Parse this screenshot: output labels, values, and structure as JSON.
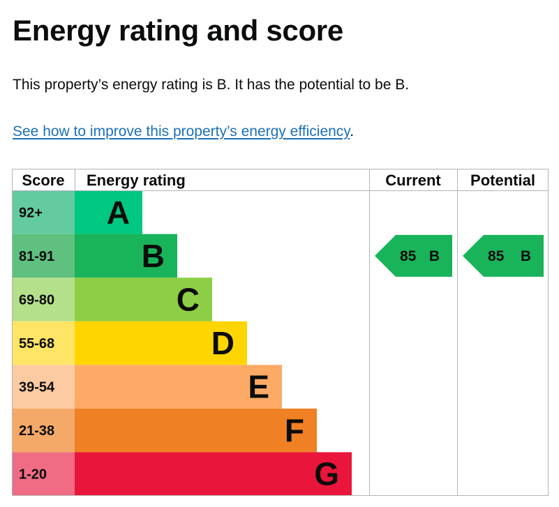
{
  "page": {
    "title": "Energy rating and score",
    "summary": "This property’s energy rating is B. It has the potential to be B.",
    "improve_link": "See how to improve this property’s energy efficiency",
    "improve_link_suffix": "."
  },
  "chart_data": {
    "type": "table",
    "columns": [
      "Score",
      "Energy rating",
      "Current",
      "Potential"
    ],
    "bands": [
      {
        "range": "92+",
        "letter": "A",
        "color": "#00c781",
        "score_bg": "#64cba0"
      },
      {
        "range": "81-91",
        "letter": "B",
        "color": "#19b459",
        "score_bg": "#5fc07f"
      },
      {
        "range": "69-80",
        "letter": "C",
        "color": "#8dce46",
        "score_bg": "#b4e08c"
      },
      {
        "range": "55-68",
        "letter": "D",
        "color": "#ffd500",
        "score_bg": "#ffe566"
      },
      {
        "range": "39-54",
        "letter": "E",
        "color": "#fcaa65",
        "score_bg": "#fdcba2"
      },
      {
        "range": "21-38",
        "letter": "F",
        "color": "#ef8023",
        "score_bg": "#f5a969"
      },
      {
        "range": "1-20",
        "letter": "G",
        "color": "#e9153b",
        "score_bg": "#f06c84"
      }
    ],
    "current": {
      "score": "85",
      "letter": "B",
      "band_index": 1
    },
    "potential": {
      "score": "85",
      "letter": "B",
      "band_index": 1
    }
  }
}
